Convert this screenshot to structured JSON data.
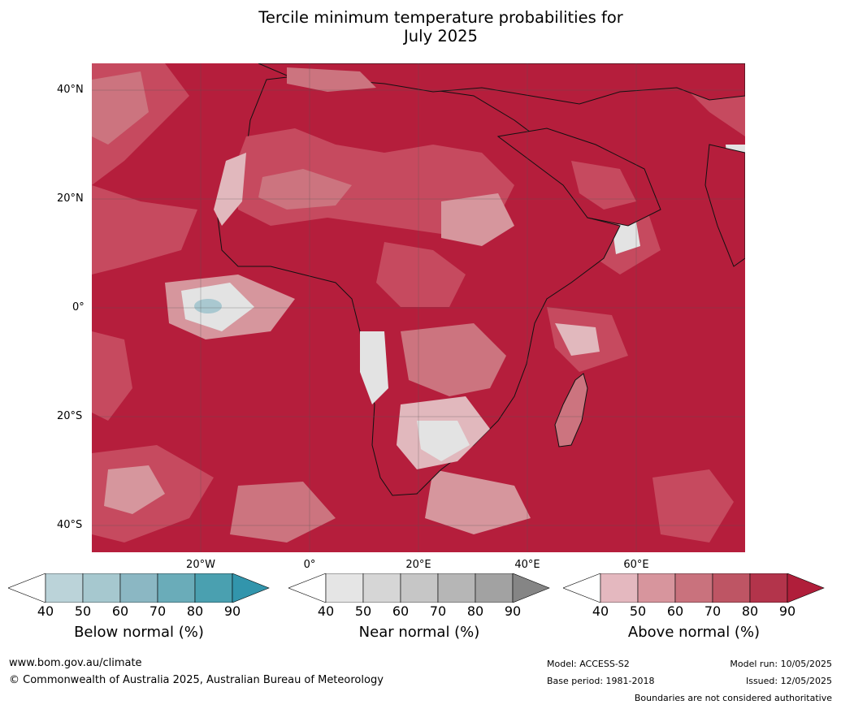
{
  "title": {
    "line1": "Tercile minimum temperature probabilities for",
    "line2": "July 2025"
  },
  "map": {
    "lat_labels": [
      "40°N",
      "20°N",
      "0°",
      "20°S",
      "40°S"
    ],
    "lon_labels": [
      "20°W",
      "0°",
      "20°E",
      "40°E",
      "60°E"
    ],
    "colors": {
      "ocean_above_90": "#b51e3c",
      "above_80": "#c64a5f",
      "above_70": "#cc747f",
      "above_60": "#d6969d",
      "above_50": "#e1b8bd",
      "near_normal": "#e3e3e3",
      "below_normal": "#a9c8d0"
    }
  },
  "legend": [
    {
      "name": "Below normal (%)",
      "ticks": [
        "40",
        "50",
        "60",
        "70",
        "80",
        "90"
      ],
      "colors": [
        "#ffffff",
        "#bbd3d9",
        "#a6c8cf",
        "#8bb7c3",
        "#6aacb9",
        "#4aa0b0",
        "#3295ac"
      ]
    },
    {
      "name": "Near normal (%)",
      "ticks": [
        "40",
        "50",
        "60",
        "70",
        "80",
        "90"
      ],
      "colors": [
        "#ffffff",
        "#e5e5e5",
        "#d6d6d6",
        "#c6c6c6",
        "#b6b6b6",
        "#a2a2a2",
        "#858585"
      ]
    },
    {
      "name": "Above normal (%)",
      "ticks": [
        "40",
        "50",
        "60",
        "70",
        "80",
        "90"
      ],
      "colors": [
        "#ffffff",
        "#e4b8bf",
        "#d7959d",
        "#c9727d",
        "#be5564",
        "#b3344b",
        "#b01e3a"
      ]
    }
  ],
  "footer": {
    "url": "www.bom.gov.au/climate",
    "copyright": "© Commonwealth of Australia 2025, Australian Bureau of Meteorology",
    "model": "Model: ACCESS-S2",
    "base_period": "Base period: 1981-2018",
    "model_run": "Model run: 10/05/2025",
    "issued": "Issued: 12/05/2025",
    "disclaimer": "Boundaries are not considered authoritative"
  }
}
